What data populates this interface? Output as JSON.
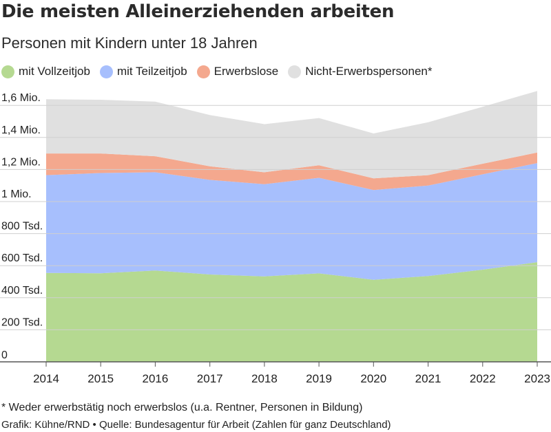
{
  "title": "Die meisten Alleinerziehenden arbeiten",
  "subtitle": "Personen mit Kindern unter 18 Jahren",
  "footnote": "* Weder erwerbstätig noch erwerbslos (u.a. Rentner, Personen in Bildung)",
  "source": "Grafik: Kühne/RND • Quelle: Bundesagentur für Arbeit (Zahlen für ganz Deutschland)",
  "chart_data": {
    "type": "area",
    "stacked": true,
    "x": [
      2014,
      2015,
      2016,
      2017,
      2018,
      2019,
      2020,
      2021,
      2022,
      2023
    ],
    "ylim": [
      0,
      1700000
    ],
    "yticks": [
      0,
      200000,
      400000,
      600000,
      800000,
      1000000,
      1200000,
      1400000,
      1600000
    ],
    "ytick_labels": [
      "0",
      "200 Tsd.",
      "400 Tsd.",
      "600 Tsd.",
      "800 Tsd.",
      "1 Mio.",
      "1,2 Mio.",
      "1,4 Mio.",
      "1,6 Mio."
    ],
    "xtick_labels": [
      "2014",
      "2015",
      "2016",
      "2017",
      "2018",
      "2019",
      "2020",
      "2021",
      "2022",
      "2023"
    ],
    "grid": true,
    "legend_position": "top-left",
    "series": [
      {
        "name": "mit Vollzeitjob",
        "color": "#b5d991",
        "values": [
          555000,
          553000,
          570000,
          545000,
          533000,
          552000,
          512000,
          535000,
          575000,
          622000
        ]
      },
      {
        "name": "mit Teilzeitjob",
        "color": "#a7bffd",
        "values": [
          610000,
          625000,
          613000,
          590000,
          575000,
          596000,
          560000,
          565000,
          595000,
          618000
        ]
      },
      {
        "name": "Erwerbslose",
        "color": "#f4a88e",
        "values": [
          135000,
          122000,
          100000,
          85000,
          75000,
          78000,
          73000,
          65000,
          66000,
          66000
        ]
      },
      {
        "name": "Nicht-Erwerbspersonen*",
        "color": "#e0e0e0",
        "values": [
          338000,
          335000,
          340000,
          320000,
          300000,
          295000,
          280000,
          330000,
          355000,
          384000
        ]
      }
    ]
  }
}
